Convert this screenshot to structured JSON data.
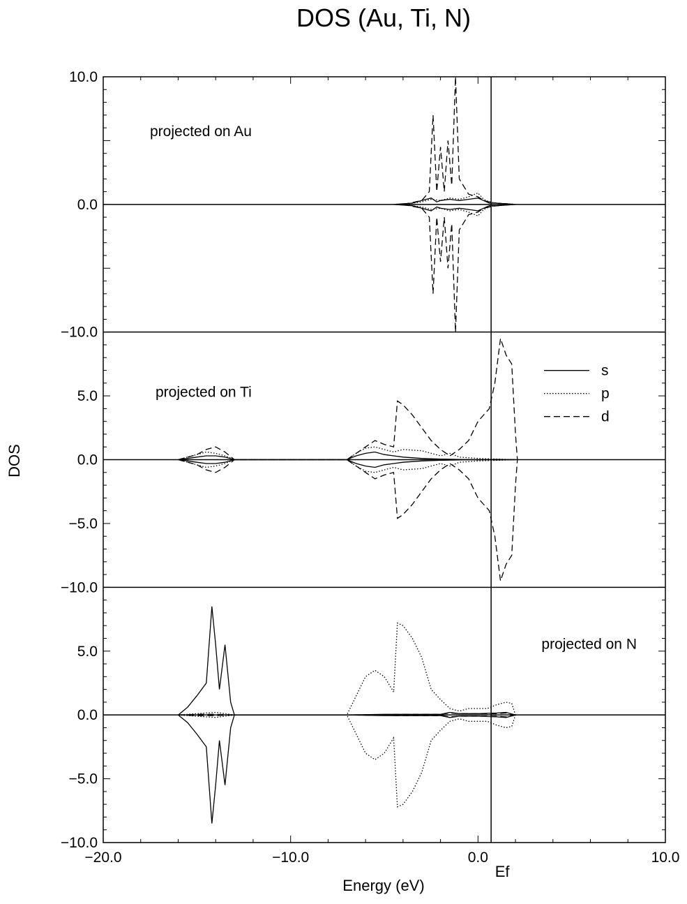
{
  "chart_data": {
    "type": "line",
    "title": "DOS (Au, Ti, N)",
    "xlabel": "Energy (eV)",
    "ylabel": "DOS",
    "xlim": [
      -20,
      10
    ],
    "x_ticks": [
      "−20.0",
      "−10.0",
      "0.0",
      "10.0"
    ],
    "fermi_level": {
      "value": 0.7,
      "label": "Ef"
    },
    "legend": {
      "placement": "top-right of middle panel",
      "entries": [
        {
          "label": "s",
          "style": "solid"
        },
        {
          "label": "p",
          "style": "dotted"
        },
        {
          "label": "d",
          "style": "dashed"
        }
      ]
    },
    "panels": [
      {
        "label": "projected on Au",
        "ylim": [
          -10,
          10
        ],
        "y_ticks": [
          "10.0",
          "0.0",
          "−10.0"
        ],
        "series": [
          {
            "name": "s",
            "style": "solid",
            "x": [
              -4.5,
              -3.5,
              -3.0,
              -2.5,
              -2.2,
              -2.0,
              -1.5,
              -1.0,
              -0.5,
              0.0,
              0.3,
              0.6,
              1.0,
              1.5,
              2.0
            ],
            "y": [
              0.0,
              0.1,
              0.3,
              0.5,
              0.2,
              0.3,
              0.4,
              0.3,
              0.4,
              0.5,
              0.3,
              0.1,
              0.1,
              0.05,
              0.0
            ]
          },
          {
            "name": "p",
            "style": "dotted",
            "x": [
              -4.0,
              -3.0,
              -2.5,
              -2.0,
              -1.5,
              -1.0,
              -0.5,
              0.0,
              0.3,
              0.6,
              1.0,
              1.5,
              2.0
            ],
            "y": [
              0.0,
              0.2,
              0.4,
              0.3,
              0.5,
              0.4,
              0.6,
              0.9,
              0.4,
              0.2,
              0.1,
              0.05,
              0.0
            ]
          },
          {
            "name": "d",
            "style": "dashed",
            "x": [
              -4.0,
              -3.0,
              -2.6,
              -2.4,
              -2.2,
              -2.0,
              -1.8,
              -1.6,
              -1.4,
              -1.2,
              -1.0,
              -0.5,
              0.0,
              0.3,
              0.6,
              1.0,
              2.0
            ],
            "y": [
              0.0,
              0.3,
              1.0,
              7.0,
              1.0,
              4.5,
              1.0,
              5.0,
              1.5,
              10.0,
              2.0,
              0.8,
              0.6,
              0.3,
              0.2,
              0.1,
              0.0
            ]
          }
        ]
      },
      {
        "label": "projected on Ti",
        "ylim": [
          -10,
          10
        ],
        "y_ticks": [
          "5.0",
          "0.0",
          "−5.0",
          "−10.0"
        ],
        "series": [
          {
            "name": "s",
            "style": "solid",
            "x": [
              -16.0,
              -15.5,
              -15.0,
              -14.5,
              -14.0,
              -13.5,
              -13.0,
              -7.0,
              -6.5,
              -6.0,
              -5.5,
              -5.0,
              -4.5,
              -4.0,
              -3.0,
              -2.0,
              -1.0,
              0.0,
              1.0,
              2.0
            ],
            "y": [
              0.0,
              0.1,
              0.2,
              0.3,
              0.3,
              0.2,
              0.0,
              0.0,
              0.3,
              0.5,
              0.6,
              0.4,
              0.3,
              0.2,
              0.1,
              0.05,
              0.02,
              0.0,
              0.02,
              0.0
            ]
          },
          {
            "name": "p",
            "style": "dotted",
            "x": [
              -16.0,
              -15.5,
              -15.0,
              -14.5,
              -14.0,
              -13.5,
              -13.0,
              -7.0,
              -6.5,
              -6.0,
              -5.5,
              -5.0,
              -4.5,
              -4.0,
              -3.0,
              -2.0,
              -1.5,
              -1.0,
              0.0,
              1.0,
              2.0
            ],
            "y": [
              0.0,
              0.2,
              0.4,
              0.6,
              0.5,
              0.3,
              0.0,
              0.0,
              0.5,
              0.9,
              1.0,
              0.8,
              0.6,
              0.8,
              0.7,
              0.3,
              0.5,
              0.2,
              0.1,
              0.05,
              0.0
            ]
          },
          {
            "name": "d",
            "style": "dashed",
            "x": [
              -16.0,
              -15.0,
              -14.5,
              -14.0,
              -13.5,
              -13.0,
              -7.0,
              -6.0,
              -5.5,
              -5.0,
              -4.5,
              -4.3,
              -4.0,
              -3.5,
              -3.0,
              -2.5,
              -2.0,
              -1.5,
              -1.0,
              -0.5,
              0.0,
              0.3,
              0.6,
              0.9,
              1.2,
              1.5,
              1.8,
              2.0,
              2.1
            ],
            "y": [
              0.0,
              0.4,
              0.8,
              1.0,
              0.6,
              0.0,
              0.0,
              1.0,
              1.5,
              1.2,
              1.0,
              4.6,
              4.3,
              3.5,
              2.5,
              1.5,
              0.8,
              0.3,
              0.8,
              1.5,
              3.0,
              3.5,
              4.0,
              6.0,
              9.5,
              8.2,
              7.5,
              2.0,
              0.0
            ]
          }
        ]
      },
      {
        "label": "projected on N",
        "ylim": [
          -10,
          10
        ],
        "y_ticks": [
          "5.0",
          "0.0",
          "−5.0",
          "−10.0"
        ],
        "series": [
          {
            "name": "s",
            "style": "solid",
            "x": [
              -16.0,
              -15.5,
              -15.0,
              -14.5,
              -14.2,
              -14.0,
              -13.8,
              -13.5,
              -13.2,
              -13.0,
              -7.0,
              -5.0,
              -2.0,
              -1.5,
              -1.0,
              0.0,
              1.0,
              1.5,
              2.0
            ],
            "y": [
              0.0,
              0.6,
              1.5,
              2.5,
              8.5,
              5.5,
              2.0,
              5.5,
              1.0,
              0.0,
              0.0,
              0.05,
              0.05,
              0.2,
              0.1,
              0.1,
              0.15,
              0.2,
              0.0
            ]
          },
          {
            "name": "p",
            "style": "dotted",
            "x": [
              -16.0,
              -15.0,
              -14.5,
              -14.0,
              -13.5,
              -13.0,
              -7.0,
              -6.5,
              -6.0,
              -5.5,
              -5.0,
              -4.5,
              -4.3,
              -4.0,
              -3.5,
              -3.0,
              -2.5,
              -2.0,
              -1.5,
              -1.0,
              -0.5,
              0.0,
              0.5,
              1.0,
              1.5,
              1.8,
              2.0
            ],
            "y": [
              0.0,
              0.1,
              0.15,
              0.2,
              0.1,
              0.0,
              0.0,
              1.5,
              3.0,
              3.5,
              3.0,
              1.8,
              7.2,
              7.0,
              6.0,
              4.5,
              2.0,
              1.2,
              0.5,
              0.3,
              0.5,
              0.5,
              0.5,
              0.8,
              1.0,
              0.9,
              0.0
            ]
          },
          {
            "name": "d",
            "style": "dashed",
            "x": [
              -16.0,
              -15.0,
              -14.0,
              -13.0,
              -7.0,
              -4.0,
              -2.0,
              -1.5,
              -1.0,
              0.0,
              1.0,
              1.5,
              2.0
            ],
            "y": [
              0.0,
              0.05,
              0.05,
              0.0,
              0.0,
              0.05,
              0.05,
              0.15,
              0.1,
              0.1,
              0.1,
              0.15,
              0.0
            ]
          }
        ]
      }
    ]
  }
}
